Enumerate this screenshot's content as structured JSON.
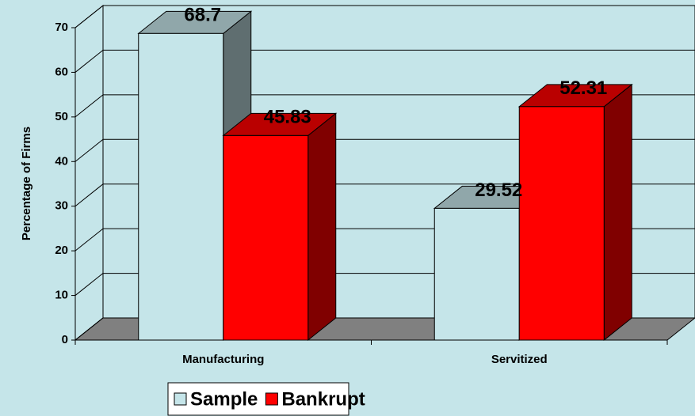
{
  "chart_data": {
    "type": "bar3d",
    "y_label": "Percentage of Firms",
    "categories": [
      "Manufacturing",
      "Servitized"
    ],
    "series": [
      {
        "name": "Sample",
        "color": "#c5e5e9",
        "values": [
          68.7,
          29.52
        ]
      },
      {
        "name": "Bankrupt",
        "color": "#ff0000",
        "values": [
          45.83,
          52.31
        ]
      }
    ],
    "ylim": [
      0,
      70
    ],
    "yticks": [
      0,
      10,
      20,
      30,
      40,
      50,
      60,
      70
    ],
    "grid": true,
    "legend": "bottom"
  }
}
